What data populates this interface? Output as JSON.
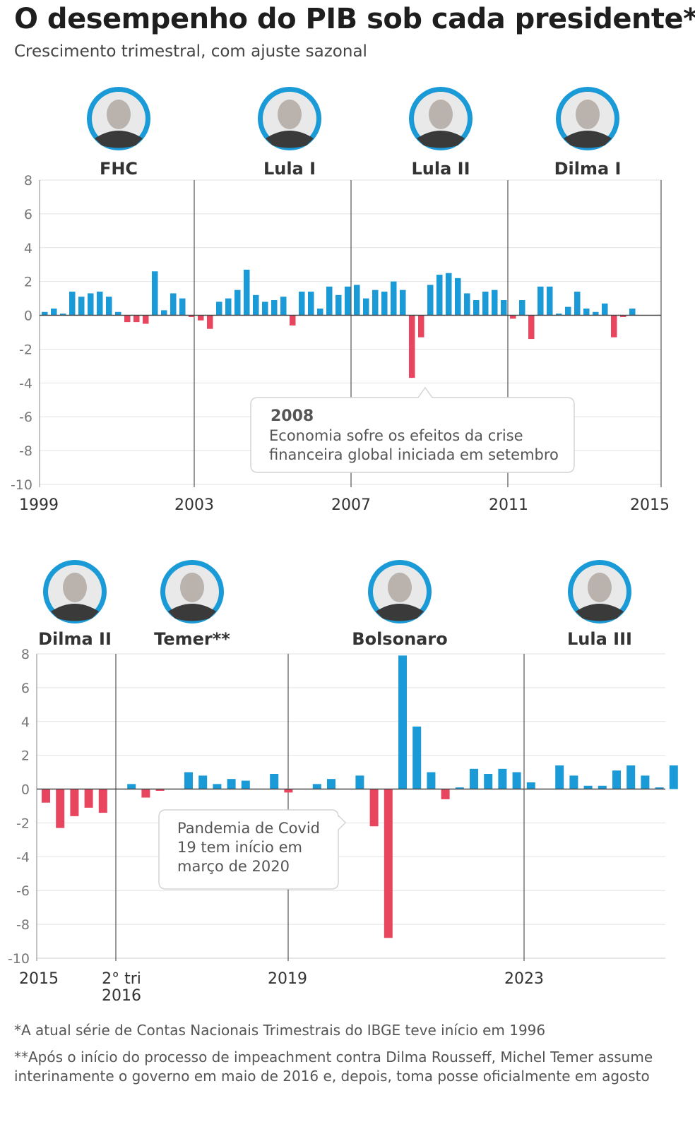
{
  "header": {
    "title": "O desempenho do PIB sob cada presidente*",
    "subtitle": "Crescimento trimestral, com ajuste sazonal"
  },
  "colors": {
    "positive": "#1a9ad6",
    "negative": "#e8455f",
    "grid": "#e2e2e2",
    "divider": "#555555"
  },
  "chart_data": [
    {
      "type": "bar",
      "ylim": [
        -10,
        8
      ],
      "y_ticks": [
        "8",
        "6",
        "4",
        "2",
        "0",
        "-2",
        "-4",
        "-6",
        "-8",
        "-10"
      ],
      "x_labels": [
        "1999",
        "2003",
        "2007",
        "2011",
        "2015"
      ],
      "presidents": [
        "FHC",
        "Lula I",
        "Lula II",
        "Dilma I"
      ],
      "annotation": {
        "title": "2008",
        "lines": [
          "Economia sofre os efeitos da crise",
          "financeira global iniciada em setembro"
        ]
      },
      "values": [
        0.2,
        0.4,
        0.1,
        1.4,
        1.1,
        1.3,
        1.4,
        1.1,
        0.2,
        -0.4,
        -0.4,
        -0.5,
        2.6,
        0.3,
        1.3,
        1.0,
        -0.1,
        -0.3,
        -0.8,
        0.8,
        1.0,
        1.5,
        2.7,
        1.2,
        0.8,
        0.9,
        1.1,
        -0.6,
        1.4,
        1.4,
        0.4,
        1.7,
        1.2,
        1.7,
        1.8,
        1.0,
        1.5,
        1.4,
        2.0,
        1.5,
        -3.7,
        -1.3,
        1.8,
        2.4,
        2.5,
        2.2,
        1.3,
        0.9,
        1.4,
        1.5,
        0.9,
        -0.2,
        0.9,
        -1.4,
        1.7,
        1.7,
        0.1,
        0.5,
        1.4,
        0.4,
        0.2,
        0.7,
        -1.3,
        -0.1,
        0.4
      ]
    },
    {
      "type": "bar",
      "ylim": [
        -10,
        8
      ],
      "y_ticks": [
        "8",
        "6",
        "4",
        "2",
        "0",
        "-2",
        "-4",
        "-6",
        "-8",
        "-10"
      ],
      "x_labels": [
        "2015",
        "2° tri\n2016",
        "2019",
        "2023"
      ],
      "presidents": [
        "Dilma II",
        "Temer**",
        "Bolsonaro",
        "Lula III"
      ],
      "annotation": {
        "title": "",
        "lines": [
          "Pandemia de Covid",
          "19 tem início em",
          "março de 2020"
        ]
      },
      "values": [
        -0.8,
        -2.3,
        -1.6,
        -1.1,
        -1.4,
        0.0,
        0.3,
        -0.5,
        -0.1,
        0.0,
        1.0,
        0.8,
        0.3,
        0.6,
        0.5,
        0.0,
        0.9,
        -0.2,
        0.0,
        0.3,
        0.6,
        0.0,
        0.8,
        -2.2,
        -8.8,
        7.9,
        3.7,
        1.0,
        -0.6,
        0.1,
        1.2,
        0.9,
        1.2,
        1.0,
        0.4,
        0.0,
        1.4,
        0.8,
        0.2,
        0.2,
        1.1,
        1.4,
        0.8,
        0.1,
        1.4
      ]
    }
  ],
  "footnotes": {
    "note1": "*A atual série de Contas Nacionais Trimestrais do IBGE teve início em 1996",
    "note2": "**Após o início do processo de impeachment contra Dilma Rousseff, Michel Temer assume interinamente o governo em maio de 2016 e, depois, toma posse oficialmente em agosto"
  }
}
